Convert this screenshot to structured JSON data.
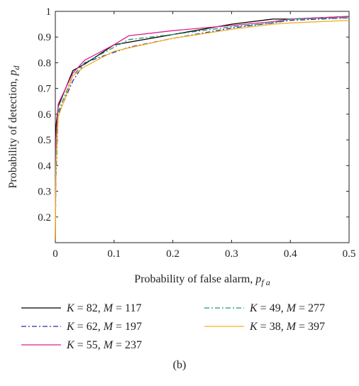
{
  "chart_data": {
    "type": "line",
    "xlabel": "Probability of false alarm, ",
    "xlabel_symbol": "p",
    "xlabel_sub": "f a",
    "ylabel": "Probability of detection, ",
    "ylabel_symbol": "p",
    "ylabel_sub": "d",
    "xlim": [
      0,
      0.5
    ],
    "ylim": [
      0.1,
      1.0
    ],
    "xticks": [
      0,
      0.1,
      0.2,
      0.3,
      0.4,
      0.5
    ],
    "xtick_labels": [
      "0",
      "0.1",
      "0.2",
      "0.3",
      "0.4",
      "0.5"
    ],
    "yticks": [
      0.2,
      0.3,
      0.4,
      0.5,
      0.6,
      0.7,
      0.8,
      0.9,
      1.0
    ],
    "ytick_labels": [
      "0.2",
      "0.3",
      "0.4",
      "0.5",
      "0.6",
      "0.7",
      "0.8",
      "0.9",
      "1"
    ],
    "grid": false,
    "legend_position": "bottom",
    "caption": "(b)",
    "series": [
      {
        "name": "K = 82, M = 117",
        "legend": {
          "k": "82",
          "m": "117"
        },
        "color": "#000000",
        "dash": "solid",
        "x": [
          0,
          0.001,
          0.005,
          0.03,
          0.05,
          0.1,
          0.2,
          0.3,
          0.37,
          0.4,
          0.5
        ],
        "y": [
          0.11,
          0.55,
          0.63,
          0.77,
          0.795,
          0.87,
          0.91,
          0.95,
          0.97,
          0.97,
          0.98
        ]
      },
      {
        "name": "K = 62, M = 197",
        "legend": {
          "k": "62",
          "m": "197"
        },
        "color": "#2b2bb0",
        "dash": "dashdot",
        "x": [
          0,
          0.001,
          0.005,
          0.03,
          0.05,
          0.08,
          0.125,
          0.2,
          0.3,
          0.37,
          0.4,
          0.5
        ],
        "y": [
          0.11,
          0.35,
          0.6,
          0.73,
          0.8,
          0.825,
          0.86,
          0.895,
          0.935,
          0.955,
          0.965,
          0.975
        ]
      },
      {
        "name": "K = 55, M = 237",
        "legend": {
          "k": "55",
          "m": "237"
        },
        "color": "#e0208c",
        "dash": "solid",
        "x": [
          0,
          0.001,
          0.005,
          0.03,
          0.05,
          0.1,
          0.125,
          0.2,
          0.3,
          0.37,
          0.4,
          0.5
        ],
        "y": [
          0.11,
          0.5,
          0.64,
          0.76,
          0.81,
          0.87,
          0.905,
          0.925,
          0.945,
          0.96,
          0.97,
          0.98
        ]
      },
      {
        "name": "K = 49, M = 277",
        "legend": {
          "k": "49",
          "m": "277"
        },
        "color": "#1a9a6a",
        "dash": "dashdot",
        "x": [
          0,
          0.001,
          0.005,
          0.03,
          0.05,
          0.1,
          0.125,
          0.2,
          0.3,
          0.37,
          0.4,
          0.5
        ],
        "y": [
          0.11,
          0.45,
          0.61,
          0.75,
          0.8,
          0.86,
          0.89,
          0.91,
          0.94,
          0.955,
          0.97,
          0.975
        ]
      },
      {
        "name": "K = 38, M = 397",
        "legend": {
          "k": "38",
          "m": "397"
        },
        "color": "#f2b21f",
        "dash": "solid",
        "x": [
          0,
          0.001,
          0.005,
          0.03,
          0.05,
          0.1,
          0.2,
          0.3,
          0.37,
          0.4,
          0.5
        ],
        "y": [
          0.11,
          0.4,
          0.59,
          0.75,
          0.785,
          0.845,
          0.895,
          0.93,
          0.95,
          0.955,
          0.965
        ]
      }
    ]
  }
}
